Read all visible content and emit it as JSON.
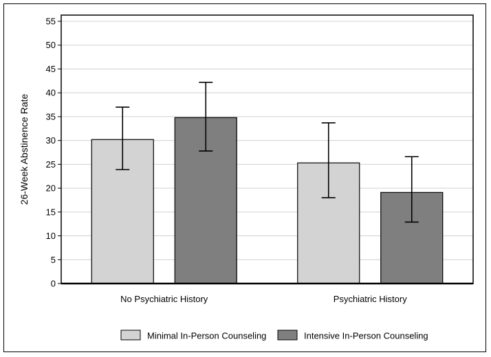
{
  "chart_data": {
    "type": "bar",
    "title": "",
    "xlabel": "",
    "ylabel": "26-Week Abstinence Rate",
    "ylim": [
      0,
      55
    ],
    "yticks": [
      0,
      5,
      10,
      15,
      20,
      25,
      30,
      35,
      40,
      45,
      50,
      55
    ],
    "grid": true,
    "legend_position": "bottom",
    "categories": [
      "No Psychiatric History",
      "Psychiatric History"
    ],
    "series": [
      {
        "name": "Minimal In-Person Counseling",
        "color": "#d3d3d3",
        "values": [
          30.2,
          25.3
        ],
        "error_low": [
          23.9,
          18.0
        ],
        "error_high": [
          37.0,
          33.7
        ]
      },
      {
        "name": "Intensive In-Person Counseling",
        "color": "#7f7f7f",
        "values": [
          34.8,
          19.1
        ],
        "error_low": [
          27.8,
          12.9
        ],
        "error_high": [
          42.2,
          26.6
        ]
      }
    ]
  }
}
